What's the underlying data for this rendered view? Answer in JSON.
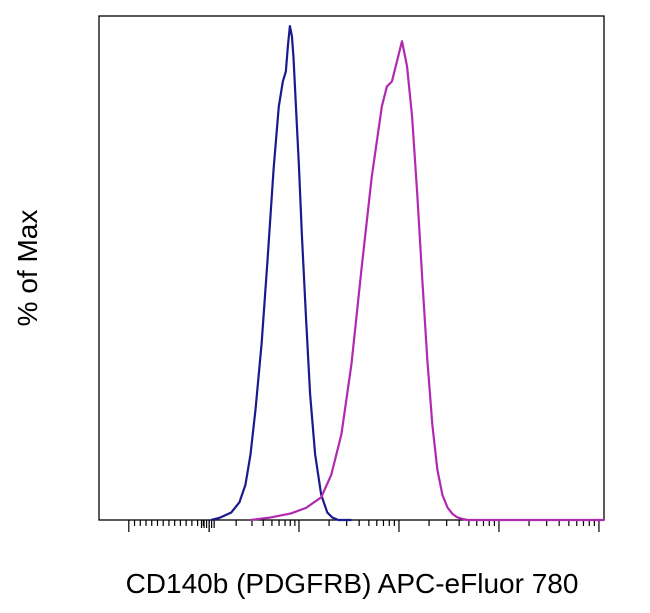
{
  "chart_data": {
    "type": "line",
    "title": "",
    "xlabel": "CD140b (PDGFRB) APC-eFluor 780",
    "ylabel": "% of Max",
    "x_scale": "biexponential",
    "x_tick_labels": [],
    "y_tick_labels": [],
    "ylim": [
      0,
      100
    ],
    "grid": false,
    "legend": "none",
    "series": [
      {
        "color": "#1a1a8c",
        "x": [
          0.222,
          0.238,
          0.262,
          0.278,
          0.29,
          0.3,
          0.31,
          0.322,
          0.334,
          0.346,
          0.356,
          0.364,
          0.37,
          0.374,
          0.378,
          0.382,
          0.385,
          0.39,
          0.396,
          0.402,
          0.41,
          0.418,
          0.428,
          0.44,
          0.452,
          0.462,
          0.474,
          0.486,
          0.5
        ],
        "y": [
          0,
          0.4,
          1.5,
          3.5,
          7,
          13,
          22,
          35,
          52,
          70,
          82,
          87,
          89,
          94,
          98,
          96,
          92,
          82,
          70,
          56,
          40,
          25,
          13,
          5,
          1.5,
          0.5,
          0,
          0,
          0
        ]
      },
      {
        "color": "#b02ab0",
        "x": [
          0.3,
          0.34,
          0.38,
          0.41,
          0.44,
          0.46,
          0.48,
          0.5,
          0.52,
          0.54,
          0.56,
          0.57,
          0.58,
          0.59,
          0.6,
          0.61,
          0.62,
          0.63,
          0.64,
          0.65,
          0.66,
          0.67,
          0.68,
          0.69,
          0.7,
          0.71,
          0.72,
          0.73,
          1.0
        ],
        "y": [
          0,
          0.5,
          1.3,
          2.4,
          4.5,
          9,
          17,
          31,
          50,
          68,
          82,
          86,
          87,
          91,
          95,
          90,
          80,
          65,
          48,
          32,
          19,
          10,
          5,
          2.5,
          1.2,
          0.5,
          0.2,
          0,
          0
        ]
      }
    ]
  }
}
